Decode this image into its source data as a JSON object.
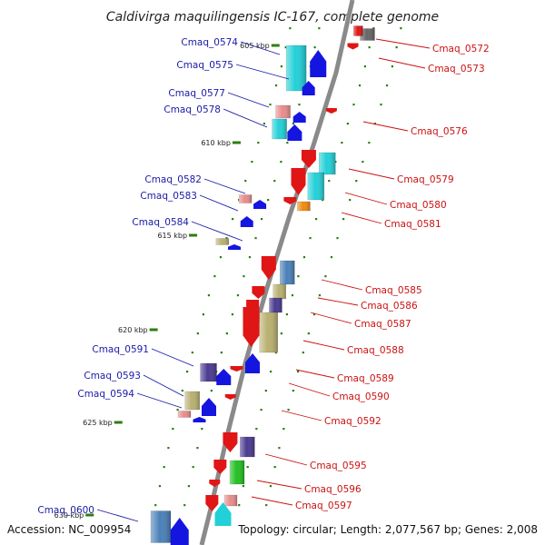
{
  "title": "Caldivirga maquilingensis IC-167, complete genome",
  "footer": {
    "accession": "Accession: NC_009954",
    "summary": "Topology: circular; Length: 2,077,567 bp; Genes: 2,008"
  },
  "colors": {
    "backbone": "#8a8a8a",
    "tick": "#2e7d12",
    "label_left": "#1a1aa8",
    "label_right": "#cc1111",
    "red": "#e01515",
    "blue": "#1515e0",
    "cyan": "#22d0d8",
    "navy": "#4a3a90",
    "khaki": "#b8b070",
    "pink": "#e88c8c",
    "steel": "#4a80b8",
    "orange": "#f08a10",
    "green": "#22c022",
    "gray": "#666666"
  },
  "ticks": [
    "605 kbp",
    "610 kbp",
    "615 kbp",
    "620 kbp",
    "625 kbp",
    "630 kbp"
  ],
  "genes": [
    {
      "id": "Cmaq_0572",
      "side": "right",
      "color": "gray"
    },
    {
      "id": "Cmaq_0573",
      "side": "right",
      "color": "red"
    },
    {
      "id": "Cmaq_0574",
      "side": "left",
      "color": "cyan"
    },
    {
      "id": "Cmaq_0575",
      "side": "left",
      "color": "blue"
    },
    {
      "id": "Cmaq_0576",
      "side": "right",
      "color": "red"
    },
    {
      "id": "Cmaq_0577",
      "side": "left",
      "color": "pink"
    },
    {
      "id": "Cmaq_0578",
      "side": "left",
      "color": "cyan"
    },
    {
      "id": "Cmaq_0579",
      "side": "right",
      "color": "cyan"
    },
    {
      "id": "Cmaq_0580",
      "side": "right",
      "color": "red"
    },
    {
      "id": "Cmaq_0581",
      "side": "right",
      "color": "orange"
    },
    {
      "id": "Cmaq_0582",
      "side": "left",
      "color": "pink"
    },
    {
      "id": "Cmaq_0583",
      "side": "left",
      "color": "blue"
    },
    {
      "id": "Cmaq_0584",
      "side": "left",
      "color": "khaki"
    },
    {
      "id": "Cmaq_0585",
      "side": "right",
      "color": "steel"
    },
    {
      "id": "Cmaq_0586",
      "side": "right",
      "color": "khaki"
    },
    {
      "id": "Cmaq_0587",
      "side": "right",
      "color": "navy"
    },
    {
      "id": "Cmaq_0588",
      "side": "right",
      "color": "khaki"
    },
    {
      "id": "Cmaq_0589",
      "side": "right",
      "color": "blue"
    },
    {
      "id": "Cmaq_0590",
      "side": "right",
      "color": "red"
    },
    {
      "id": "Cmaq_0591",
      "side": "left",
      "color": "navy"
    },
    {
      "id": "Cmaq_0592",
      "side": "right",
      "color": "red"
    },
    {
      "id": "Cmaq_0593",
      "side": "left",
      "color": "khaki"
    },
    {
      "id": "Cmaq_0594",
      "side": "left",
      "color": "pink"
    },
    {
      "id": "Cmaq_0595",
      "side": "right",
      "color": "navy"
    },
    {
      "id": "Cmaq_0596",
      "side": "right",
      "color": "green"
    },
    {
      "id": "Cmaq_0597",
      "side": "right",
      "color": "pink"
    },
    {
      "id": "Cmaq_0600",
      "side": "left",
      "color": "steel"
    }
  ]
}
